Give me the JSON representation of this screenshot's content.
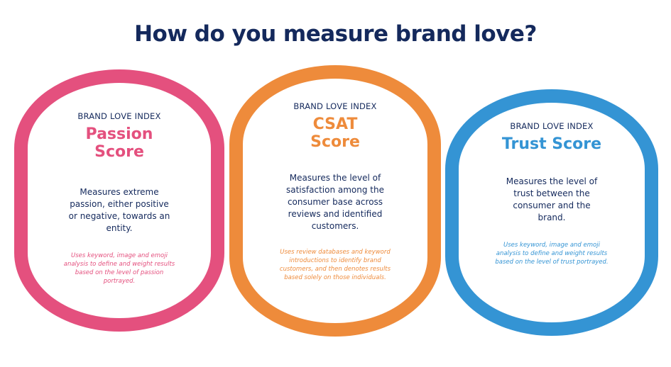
{
  "title": "How do you measure brand love?",
  "colors": {
    "navy": "#14295c",
    "pink": "#e4507e",
    "orange": "#ee8b3b",
    "blue": "#3494d4"
  },
  "cards": [
    {
      "eyebrow": "BRAND LOVE INDEX",
      "heading": "Passion Score",
      "description": "Measures extreme passion, either positive or negative, towards an entity.",
      "note": "Uses keyword, image and emoji analysis to define and weight results based on the level of passion portrayed."
    },
    {
      "eyebrow": "BRAND LOVE INDEX",
      "heading": "CSAT Score",
      "description": "Measures the level of satisfaction among the consumer base across reviews and identified customers.",
      "note": "Uses review databases and keyword introductions to identify brand customers, and then denotes results based solely on those individuals."
    },
    {
      "eyebrow": "BRAND LOVE INDEX",
      "heading": "Trust Score",
      "description": "Measures the level of trust between the consumer and the brand.",
      "note": "Uses keyword, image and emoji analysis to define and weight results based on the level of trust portrayed."
    }
  ]
}
